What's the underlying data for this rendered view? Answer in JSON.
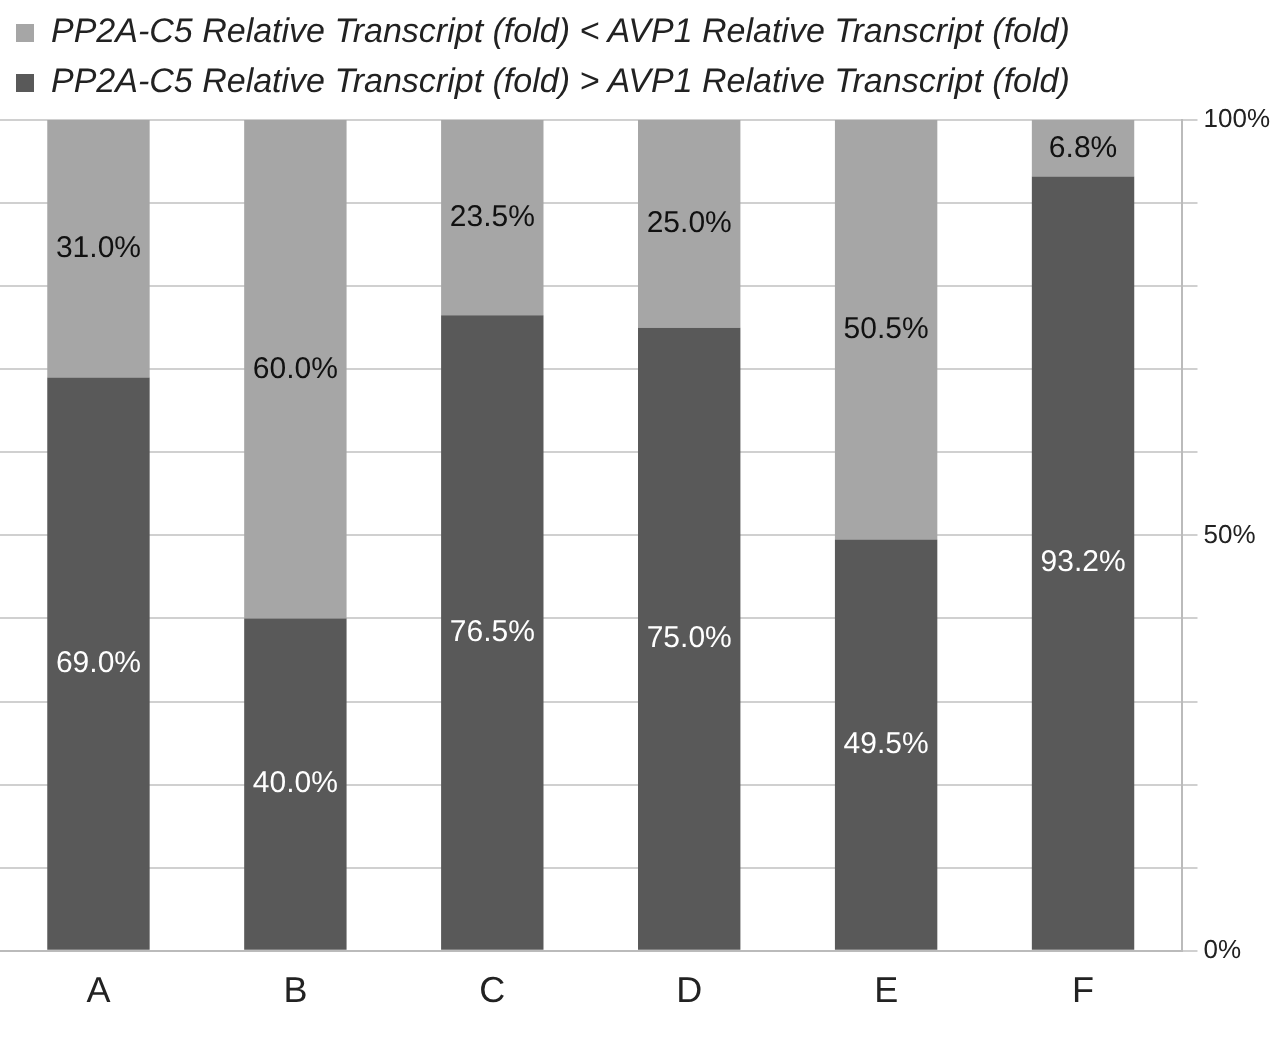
{
  "chart_data": {
    "type": "bar",
    "stacked": true,
    "categories": [
      "A",
      "B",
      "C",
      "D",
      "E",
      "F"
    ],
    "series": [
      {
        "name": "PP2A-C5 Relative Transcript (fold) > AVP1 Relative Transcript (fold)",
        "color": "#595959",
        "values": [
          69.0,
          40.0,
          76.5,
          75.0,
          49.5,
          93.2
        ],
        "value_labels": [
          "69.0%",
          "40.0%",
          "76.5%",
          "75.0%",
          "49.5%",
          "93.2%"
        ]
      },
      {
        "name": "PP2A-C5 Relative Transcript (fold) < AVP1 Relative Transcript (fold)",
        "color": "#a6a6a6",
        "values": [
          31.0,
          60.0,
          23.5,
          25.0,
          50.5,
          6.8
        ],
        "value_labels": [
          "31.0%",
          "60.0%",
          "23.5%",
          "25.0%",
          "50.5%",
          "6.8%"
        ]
      }
    ],
    "ylim": [
      0,
      100
    ],
    "yticks": [
      {
        "value": 0,
        "label": "0%"
      },
      {
        "value": 10,
        "label": null
      },
      {
        "value": 20,
        "label": null
      },
      {
        "value": 30,
        "label": null
      },
      {
        "value": 40,
        "label": null
      },
      {
        "value": 50,
        "label": "50%"
      },
      {
        "value": 60,
        "label": null
      },
      {
        "value": 70,
        "label": null
      },
      {
        "value": 80,
        "label": null
      },
      {
        "value": 90,
        "label": null
      },
      {
        "value": 100,
        "label": "100%"
      }
    ],
    "grid": "y",
    "legend": "top left"
  }
}
